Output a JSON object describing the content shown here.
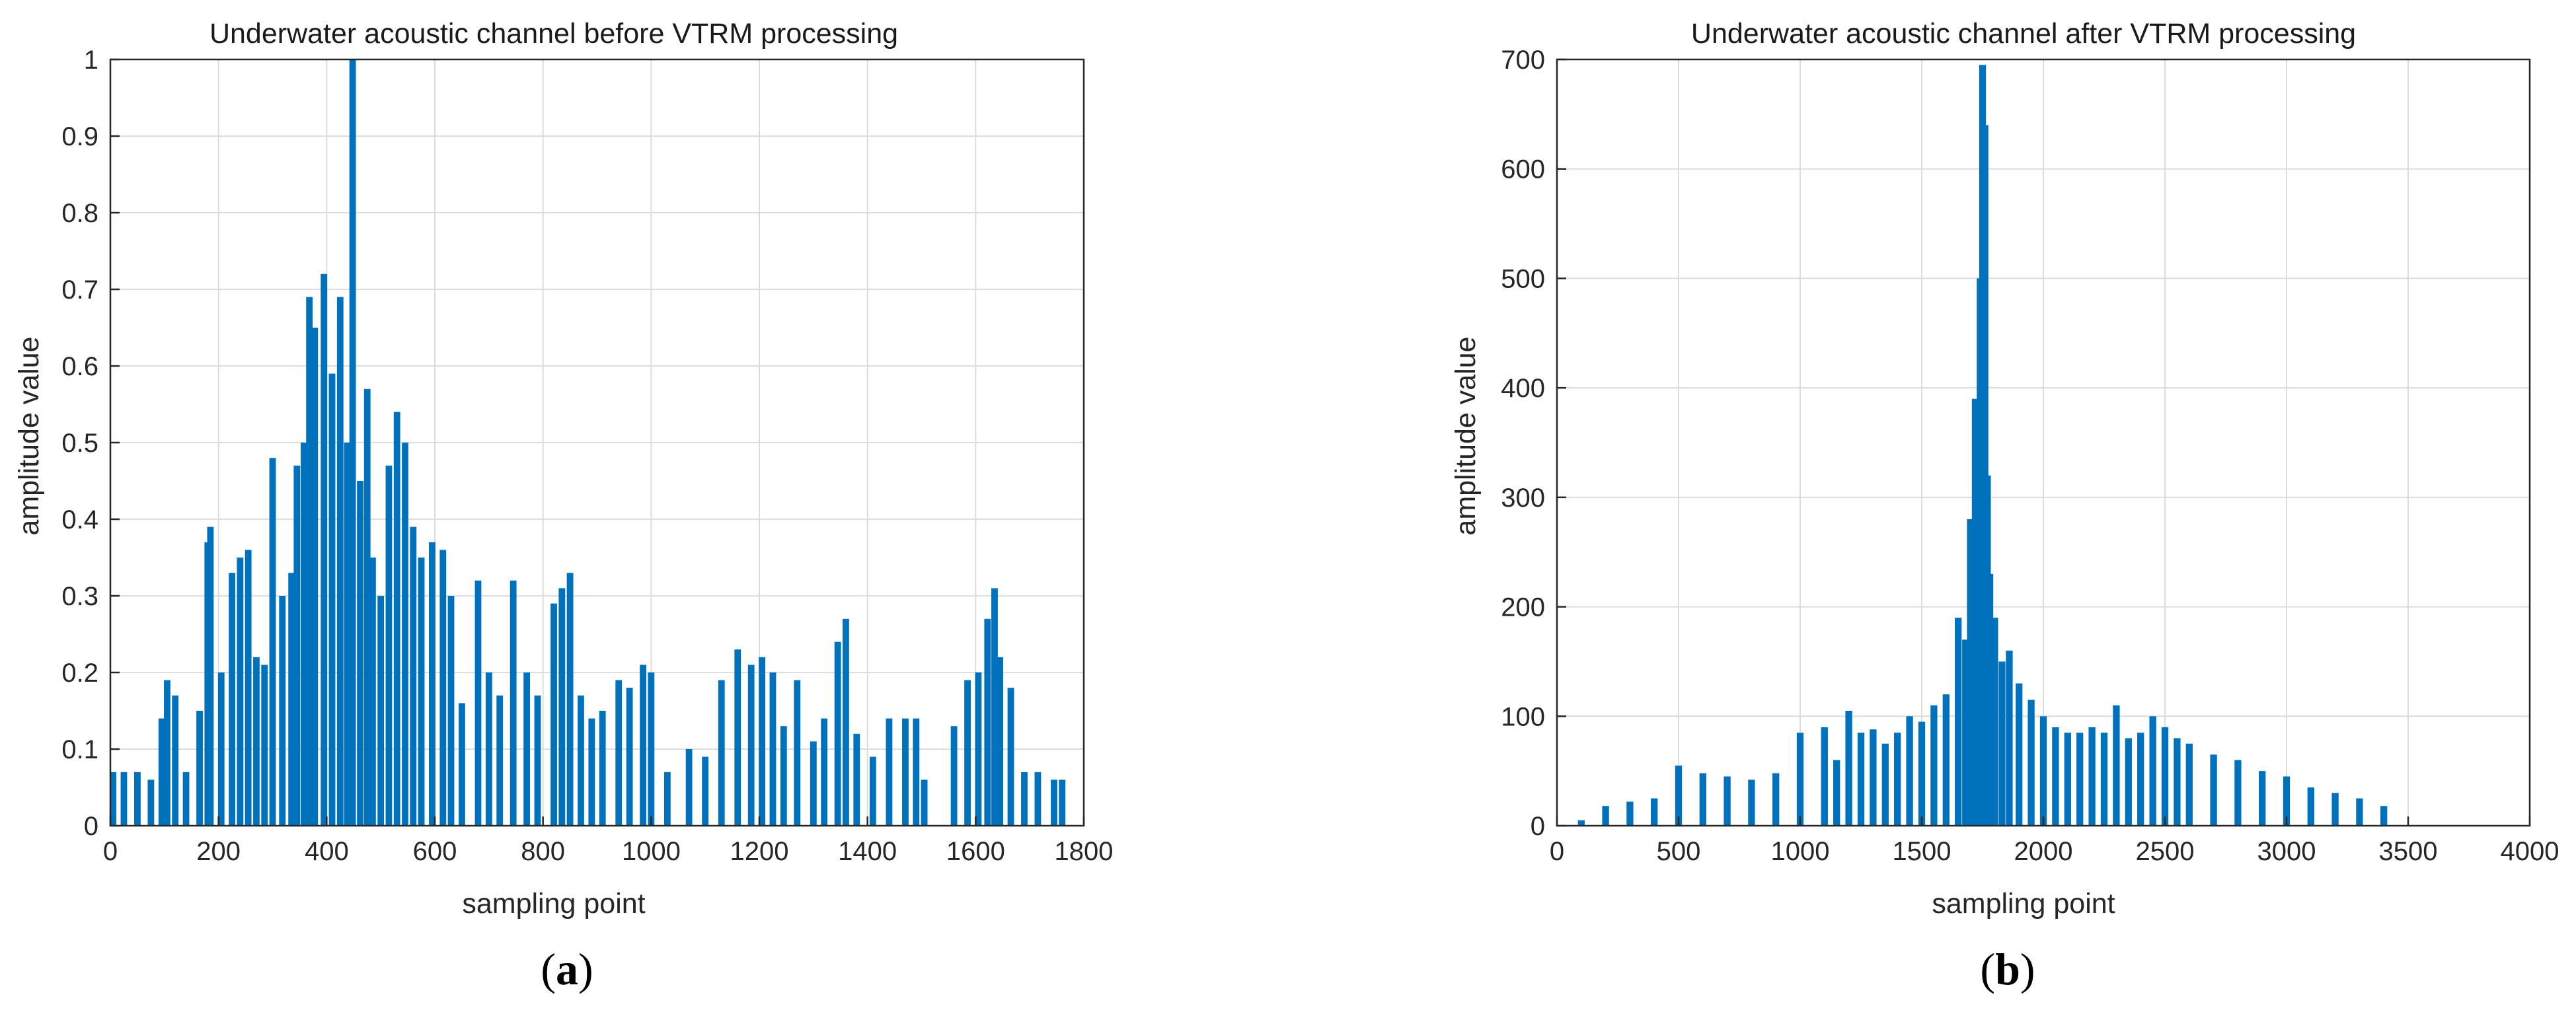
{
  "chart_data": [
    {
      "type": "bar",
      "title": "Underwater acoustic channel before VTRM processing",
      "xlabel": "sampling point",
      "ylabel": "amplitude value",
      "xlim": [
        0,
        1800
      ],
      "ylim": [
        0,
        1
      ],
      "xticks": [
        "0",
        "200",
        "400",
        "600",
        "800",
        "1000",
        "1200",
        "1400",
        "1600",
        "1800"
      ],
      "yticks": [
        "0",
        "0.1",
        "0.2",
        "0.3",
        "0.4",
        "0.5",
        "0.6",
        "0.7",
        "0.8",
        "0.9",
        "1"
      ],
      "grid": true,
      "panel_label": "a",
      "color": "#0072BD",
      "series": [
        {
          "x": [
            5,
            25,
            50,
            75,
            95,
            105,
            120,
            140,
            165,
            180,
            185,
            205,
            225,
            240,
            255,
            270,
            285,
            300,
            318,
            335,
            345,
            358,
            368,
            378,
            395,
            410,
            425,
            438,
            448,
            462,
            475,
            485,
            500,
            515,
            530,
            545,
            560,
            575,
            595,
            615,
            630,
            650,
            680,
            700,
            720,
            745,
            770,
            790,
            820,
            835,
            850,
            870,
            890,
            910,
            940,
            960,
            985,
            1000,
            1030,
            1070,
            1100,
            1130,
            1160,
            1185,
            1205,
            1225,
            1245,
            1270,
            1300,
            1320,
            1345,
            1360,
            1380,
            1410,
            1440,
            1470,
            1490,
            1505,
            1560,
            1585,
            1605,
            1622,
            1635,
            1645,
            1665,
            1690,
            1715,
            1745,
            1760
          ],
          "values": [
            0.07,
            0.07,
            0.07,
            0.06,
            0.14,
            0.19,
            0.17,
            0.07,
            0.15,
            0.37,
            0.39,
            0.2,
            0.33,
            0.35,
            0.36,
            0.22,
            0.21,
            0.48,
            0.3,
            0.33,
            0.47,
            0.5,
            0.69,
            0.65,
            0.72,
            0.59,
            0.69,
            0.5,
            1.0,
            0.45,
            0.57,
            0.35,
            0.3,
            0.47,
            0.54,
            0.5,
            0.39,
            0.35,
            0.37,
            0.36,
            0.3,
            0.16,
            0.32,
            0.2,
            0.17,
            0.32,
            0.2,
            0.17,
            0.29,
            0.31,
            0.33,
            0.17,
            0.14,
            0.15,
            0.19,
            0.18,
            0.21,
            0.2,
            0.07,
            0.1,
            0.09,
            0.19,
            0.23,
            0.21,
            0.22,
            0.2,
            0.13,
            0.19,
            0.11,
            0.14,
            0.24,
            0.27,
            0.12,
            0.09,
            0.14,
            0.14,
            0.14,
            0.06,
            0.13,
            0.19,
            0.2,
            0.27,
            0.31,
            0.22,
            0.18,
            0.07,
            0.07,
            0.06,
            0.06
          ]
        }
      ]
    },
    {
      "type": "bar",
      "title": "Underwater acoustic channel after VTRM processing",
      "xlabel": "sampling point",
      "ylabel": "amplitude value",
      "xlim": [
        0,
        4000
      ],
      "ylim": [
        0,
        700
      ],
      "xticks": [
        "0",
        "500",
        "1000",
        "1500",
        "2000",
        "2500",
        "3000",
        "3500",
        "4000"
      ],
      "yticks": [
        "0",
        "100",
        "200",
        "300",
        "400",
        "500",
        "600",
        "700"
      ],
      "grid": true,
      "panel_label": "b",
      "color": "#0072BD",
      "series": [
        {
          "x": [
            100,
            200,
            300,
            400,
            500,
            600,
            700,
            800,
            900,
            1000,
            1100,
            1150,
            1200,
            1250,
            1300,
            1350,
            1400,
            1450,
            1500,
            1550,
            1600,
            1650,
            1680,
            1700,
            1720,
            1740,
            1750,
            1760,
            1770,
            1780,
            1800,
            1830,
            1860,
            1900,
            1950,
            2000,
            2050,
            2100,
            2150,
            2200,
            2250,
            2300,
            2350,
            2400,
            2450,
            2500,
            2550,
            2600,
            2700,
            2800,
            2900,
            3000,
            3100,
            3200,
            3300,
            3400
          ],
          "values": [
            5,
            18,
            22,
            25,
            55,
            48,
            45,
            42,
            48,
            85,
            90,
            60,
            105,
            85,
            88,
            75,
            85,
            100,
            95,
            110,
            120,
            190,
            170,
            280,
            390,
            500,
            695,
            640,
            320,
            230,
            190,
            150,
            160,
            130,
            115,
            100,
            90,
            85,
            85,
            90,
            85,
            110,
            80,
            85,
            100,
            90,
            80,
            75,
            65,
            60,
            50,
            45,
            35,
            30,
            25,
            18
          ]
        }
      ]
    }
  ]
}
